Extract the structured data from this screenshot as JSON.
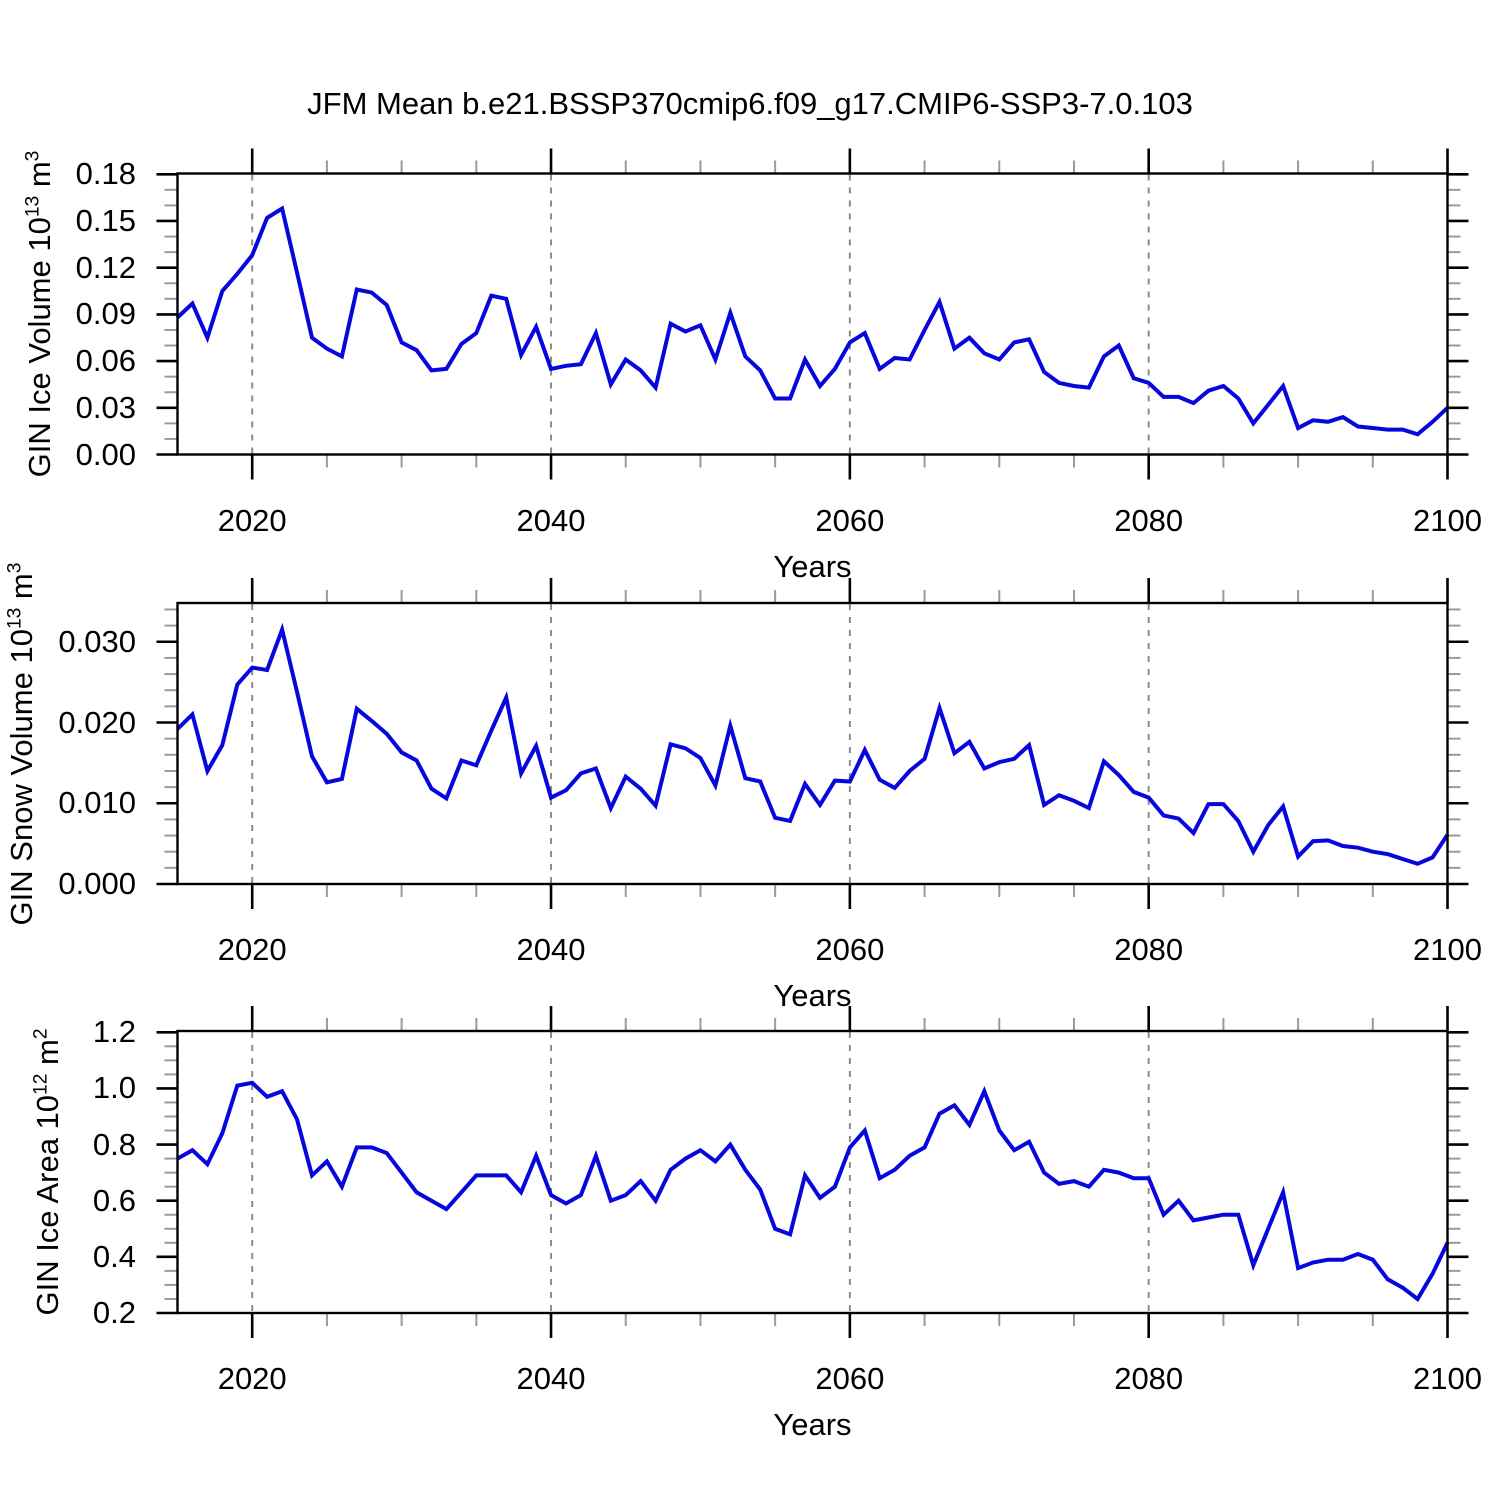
{
  "title": "JFM Mean b.e21.BSSP370cmip6.f09_g17.CMIP6-SSP3-7.0.103",
  "style": {
    "line_color": "#0606dd",
    "grid_color": "#8c8c8c",
    "axis_color": "#000000",
    "minor_tick_color": "#9a9a9a",
    "background": "#ffffff"
  },
  "x_axis": {
    "label": "Years",
    "range": [
      2015,
      2100
    ],
    "major_ticks": [
      2020,
      2040,
      2060,
      2080,
      2100
    ],
    "major_tick_labels": [
      "2020",
      "2040",
      "2060",
      "2080",
      "2100"
    ],
    "minor_step": 5,
    "gridlines": [
      2020,
      2040,
      2060,
      2080
    ]
  },
  "chart_data": [
    {
      "type": "line",
      "name": "gin-ice-volume",
      "title": "",
      "xlabel": "Years",
      "ylabel": "GIN Ice Volume 10^13 m^3",
      "ylabel_parts": [
        [
          "GIN Ice Volume 10",
          false
        ],
        [
          "13",
          true
        ],
        [
          " m",
          false
        ],
        [
          "3",
          true
        ]
      ],
      "xlim": [
        2015,
        2100
      ],
      "ylim": [
        0,
        0.1805
      ],
      "ytick_vals": [
        0.0,
        0.03,
        0.06,
        0.09,
        0.12,
        0.15,
        0.18
      ],
      "ytick_labels": [
        "0.00",
        "0.03",
        "0.06",
        "0.09",
        "0.12",
        "0.15",
        "0.18"
      ],
      "y_minor_step": 0.01,
      "grid": "vertical-dashed",
      "legend": null,
      "x": [
        2015,
        2016,
        2017,
        2018,
        2019,
        2020,
        2021,
        2022,
        2023,
        2024,
        2025,
        2026,
        2027,
        2028,
        2029,
        2030,
        2031,
        2032,
        2033,
        2034,
        2035,
        2036,
        2037,
        2038,
        2039,
        2040,
        2041,
        2042,
        2043,
        2044,
        2045,
        2046,
        2047,
        2048,
        2049,
        2050,
        2051,
        2052,
        2053,
        2054,
        2055,
        2056,
        2057,
        2058,
        2059,
        2060,
        2061,
        2062,
        2063,
        2064,
        2065,
        2066,
        2067,
        2068,
        2069,
        2070,
        2071,
        2072,
        2073,
        2074,
        2075,
        2076,
        2077,
        2078,
        2079,
        2080,
        2081,
        2082,
        2083,
        2084,
        2085,
        2086,
        2087,
        2088,
        2089,
        2090,
        2091,
        2092,
        2093,
        2094,
        2095,
        2096,
        2097,
        2098,
        2099,
        2100
      ],
      "values": [
        0.088,
        0.097,
        0.075,
        0.105,
        0.116,
        0.128,
        0.152,
        0.158,
        0.117,
        0.075,
        0.068,
        0.063,
        0.106,
        0.104,
        0.096,
        0.072,
        0.067,
        0.054,
        0.055,
        0.071,
        0.078,
        0.102,
        0.1,
        0.064,
        0.082,
        0.055,
        0.057,
        0.058,
        0.078,
        0.045,
        0.061,
        0.054,
        0.043,
        0.084,
        0.079,
        0.083,
        0.061,
        0.091,
        0.063,
        0.054,
        0.036,
        0.036,
        0.061,
        0.044,
        0.055,
        0.072,
        0.078,
        0.055,
        0.062,
        0.061,
        0.08,
        0.098,
        0.068,
        0.075,
        0.065,
        0.061,
        0.072,
        0.074,
        0.053,
        0.046,
        0.044,
        0.043,
        0.063,
        0.07,
        0.049,
        0.046,
        0.037,
        0.037,
        0.033,
        0.041,
        0.044,
        0.036,
        0.02,
        0.032,
        0.044,
        0.017,
        0.022,
        0.021,
        0.024,
        0.018,
        0.017,
        0.016,
        0.016,
        0.013,
        0.021,
        0.03
      ]
    },
    {
      "type": "line",
      "name": "gin-snow-volume",
      "title": "",
      "xlabel": "Years",
      "ylabel": "GIN Snow Volume 10^13 m^3",
      "ylabel_parts": [
        [
          "GIN Snow Volume 10",
          false
        ],
        [
          "13",
          true
        ],
        [
          " m",
          false
        ],
        [
          "3",
          true
        ]
      ],
      "xlim": [
        2015,
        2100
      ],
      "ylim": [
        0,
        0.0348
      ],
      "ytick_vals": [
        0.0,
        0.01,
        0.02,
        0.03
      ],
      "ytick_labels": [
        "0.000",
        "0.010",
        "0.020",
        "0.030"
      ],
      "y_minor_step": 0.002,
      "grid": "vertical-dashed",
      "legend": null,
      "x": [
        2015,
        2016,
        2017,
        2018,
        2019,
        2020,
        2021,
        2022,
        2023,
        2024,
        2025,
        2026,
        2027,
        2028,
        2029,
        2030,
        2031,
        2032,
        2033,
        2034,
        2035,
        2036,
        2037,
        2038,
        2039,
        2040,
        2041,
        2042,
        2043,
        2044,
        2045,
        2046,
        2047,
        2048,
        2049,
        2050,
        2051,
        2052,
        2053,
        2054,
        2055,
        2056,
        2057,
        2058,
        2059,
        2060,
        2061,
        2062,
        2063,
        2064,
        2065,
        2066,
        2067,
        2068,
        2069,
        2070,
        2071,
        2072,
        2073,
        2074,
        2075,
        2076,
        2077,
        2078,
        2079,
        2080,
        2081,
        2082,
        2083,
        2084,
        2085,
        2086,
        2087,
        2088,
        2089,
        2090,
        2091,
        2092,
        2093,
        2094,
        2095,
        2096,
        2097,
        2098,
        2099,
        2100
      ],
      "values": [
        0.0192,
        0.021,
        0.014,
        0.0172,
        0.0247,
        0.0268,
        0.0265,
        0.0315,
        0.0238,
        0.0158,
        0.0126,
        0.013,
        0.0217,
        0.0202,
        0.0186,
        0.0163,
        0.0153,
        0.0118,
        0.0106,
        0.0153,
        0.0147,
        0.019,
        0.0231,
        0.0137,
        0.0171,
        0.0107,
        0.0116,
        0.0137,
        0.0143,
        0.0094,
        0.0133,
        0.0118,
        0.0097,
        0.0173,
        0.0168,
        0.0156,
        0.0122,
        0.0196,
        0.0131,
        0.0127,
        0.0082,
        0.0078,
        0.0124,
        0.0098,
        0.0128,
        0.0127,
        0.0166,
        0.0129,
        0.0119,
        0.014,
        0.0155,
        0.0218,
        0.0162,
        0.0176,
        0.0143,
        0.0151,
        0.0155,
        0.0172,
        0.0098,
        0.011,
        0.0103,
        0.0094,
        0.0152,
        0.0135,
        0.0114,
        0.0107,
        0.0085,
        0.0081,
        0.0063,
        0.0099,
        0.0099,
        0.0078,
        0.004,
        0.0073,
        0.0096,
        0.0034,
        0.0053,
        0.0054,
        0.0047,
        0.0045,
        0.004,
        0.0037,
        0.0031,
        0.0025,
        0.0033,
        0.0061
      ]
    },
    {
      "type": "line",
      "name": "gin-ice-area",
      "title": "",
      "xlabel": "Years",
      "ylabel": "GIN Ice Area 10^12 m^2",
      "ylabel_parts": [
        [
          "GIN Ice Area 10",
          false
        ],
        [
          "12",
          true
        ],
        [
          " m",
          false
        ],
        [
          "2",
          true
        ]
      ],
      "xlim": [
        2015,
        2100
      ],
      "ylim": [
        0.2,
        1.2045
      ],
      "ytick_vals": [
        0.2,
        0.4,
        0.6,
        0.8,
        1.0,
        1.2
      ],
      "ytick_labels": [
        "0.2",
        "0.4",
        "0.6",
        "0.8",
        "1.0",
        "1.2"
      ],
      "y_minor_step": 0.05,
      "grid": "vertical-dashed",
      "legend": null,
      "x": [
        2015,
        2016,
        2017,
        2018,
        2019,
        2020,
        2021,
        2022,
        2023,
        2024,
        2025,
        2026,
        2027,
        2028,
        2029,
        2030,
        2031,
        2032,
        2033,
        2034,
        2035,
        2036,
        2037,
        2038,
        2039,
        2040,
        2041,
        2042,
        2043,
        2044,
        2045,
        2046,
        2047,
        2048,
        2049,
        2050,
        2051,
        2052,
        2053,
        2054,
        2055,
        2056,
        2057,
        2058,
        2059,
        2060,
        2061,
        2062,
        2063,
        2064,
        2065,
        2066,
        2067,
        2068,
        2069,
        2070,
        2071,
        2072,
        2073,
        2074,
        2075,
        2076,
        2077,
        2078,
        2079,
        2080,
        2081,
        2082,
        2083,
        2084,
        2085,
        2086,
        2087,
        2088,
        2089,
        2090,
        2091,
        2092,
        2093,
        2094,
        2095,
        2096,
        2097,
        2098,
        2099,
        2100
      ],
      "values": [
        0.75,
        0.78,
        0.73,
        0.84,
        1.01,
        1.02,
        0.97,
        0.99,
        0.89,
        0.69,
        0.74,
        0.65,
        0.79,
        0.79,
        0.77,
        0.7,
        0.63,
        0.6,
        0.57,
        0.63,
        0.69,
        0.69,
        0.69,
        0.63,
        0.76,
        0.62,
        0.59,
        0.62,
        0.76,
        0.6,
        0.62,
        0.67,
        0.6,
        0.71,
        0.75,
        0.78,
        0.74,
        0.8,
        0.71,
        0.64,
        0.5,
        0.48,
        0.69,
        0.61,
        0.65,
        0.79,
        0.85,
        0.68,
        0.71,
        0.76,
        0.79,
        0.91,
        0.94,
        0.87,
        0.99,
        0.85,
        0.78,
        0.81,
        0.7,
        0.66,
        0.67,
        0.65,
        0.71,
        0.7,
        0.68,
        0.68,
        0.55,
        0.6,
        0.53,
        0.54,
        0.55,
        0.55,
        0.37,
        0.5,
        0.63,
        0.36,
        0.38,
        0.39,
        0.39,
        0.41,
        0.39,
        0.32,
        0.29,
        0.25,
        0.34,
        0.45
      ]
    }
  ]
}
